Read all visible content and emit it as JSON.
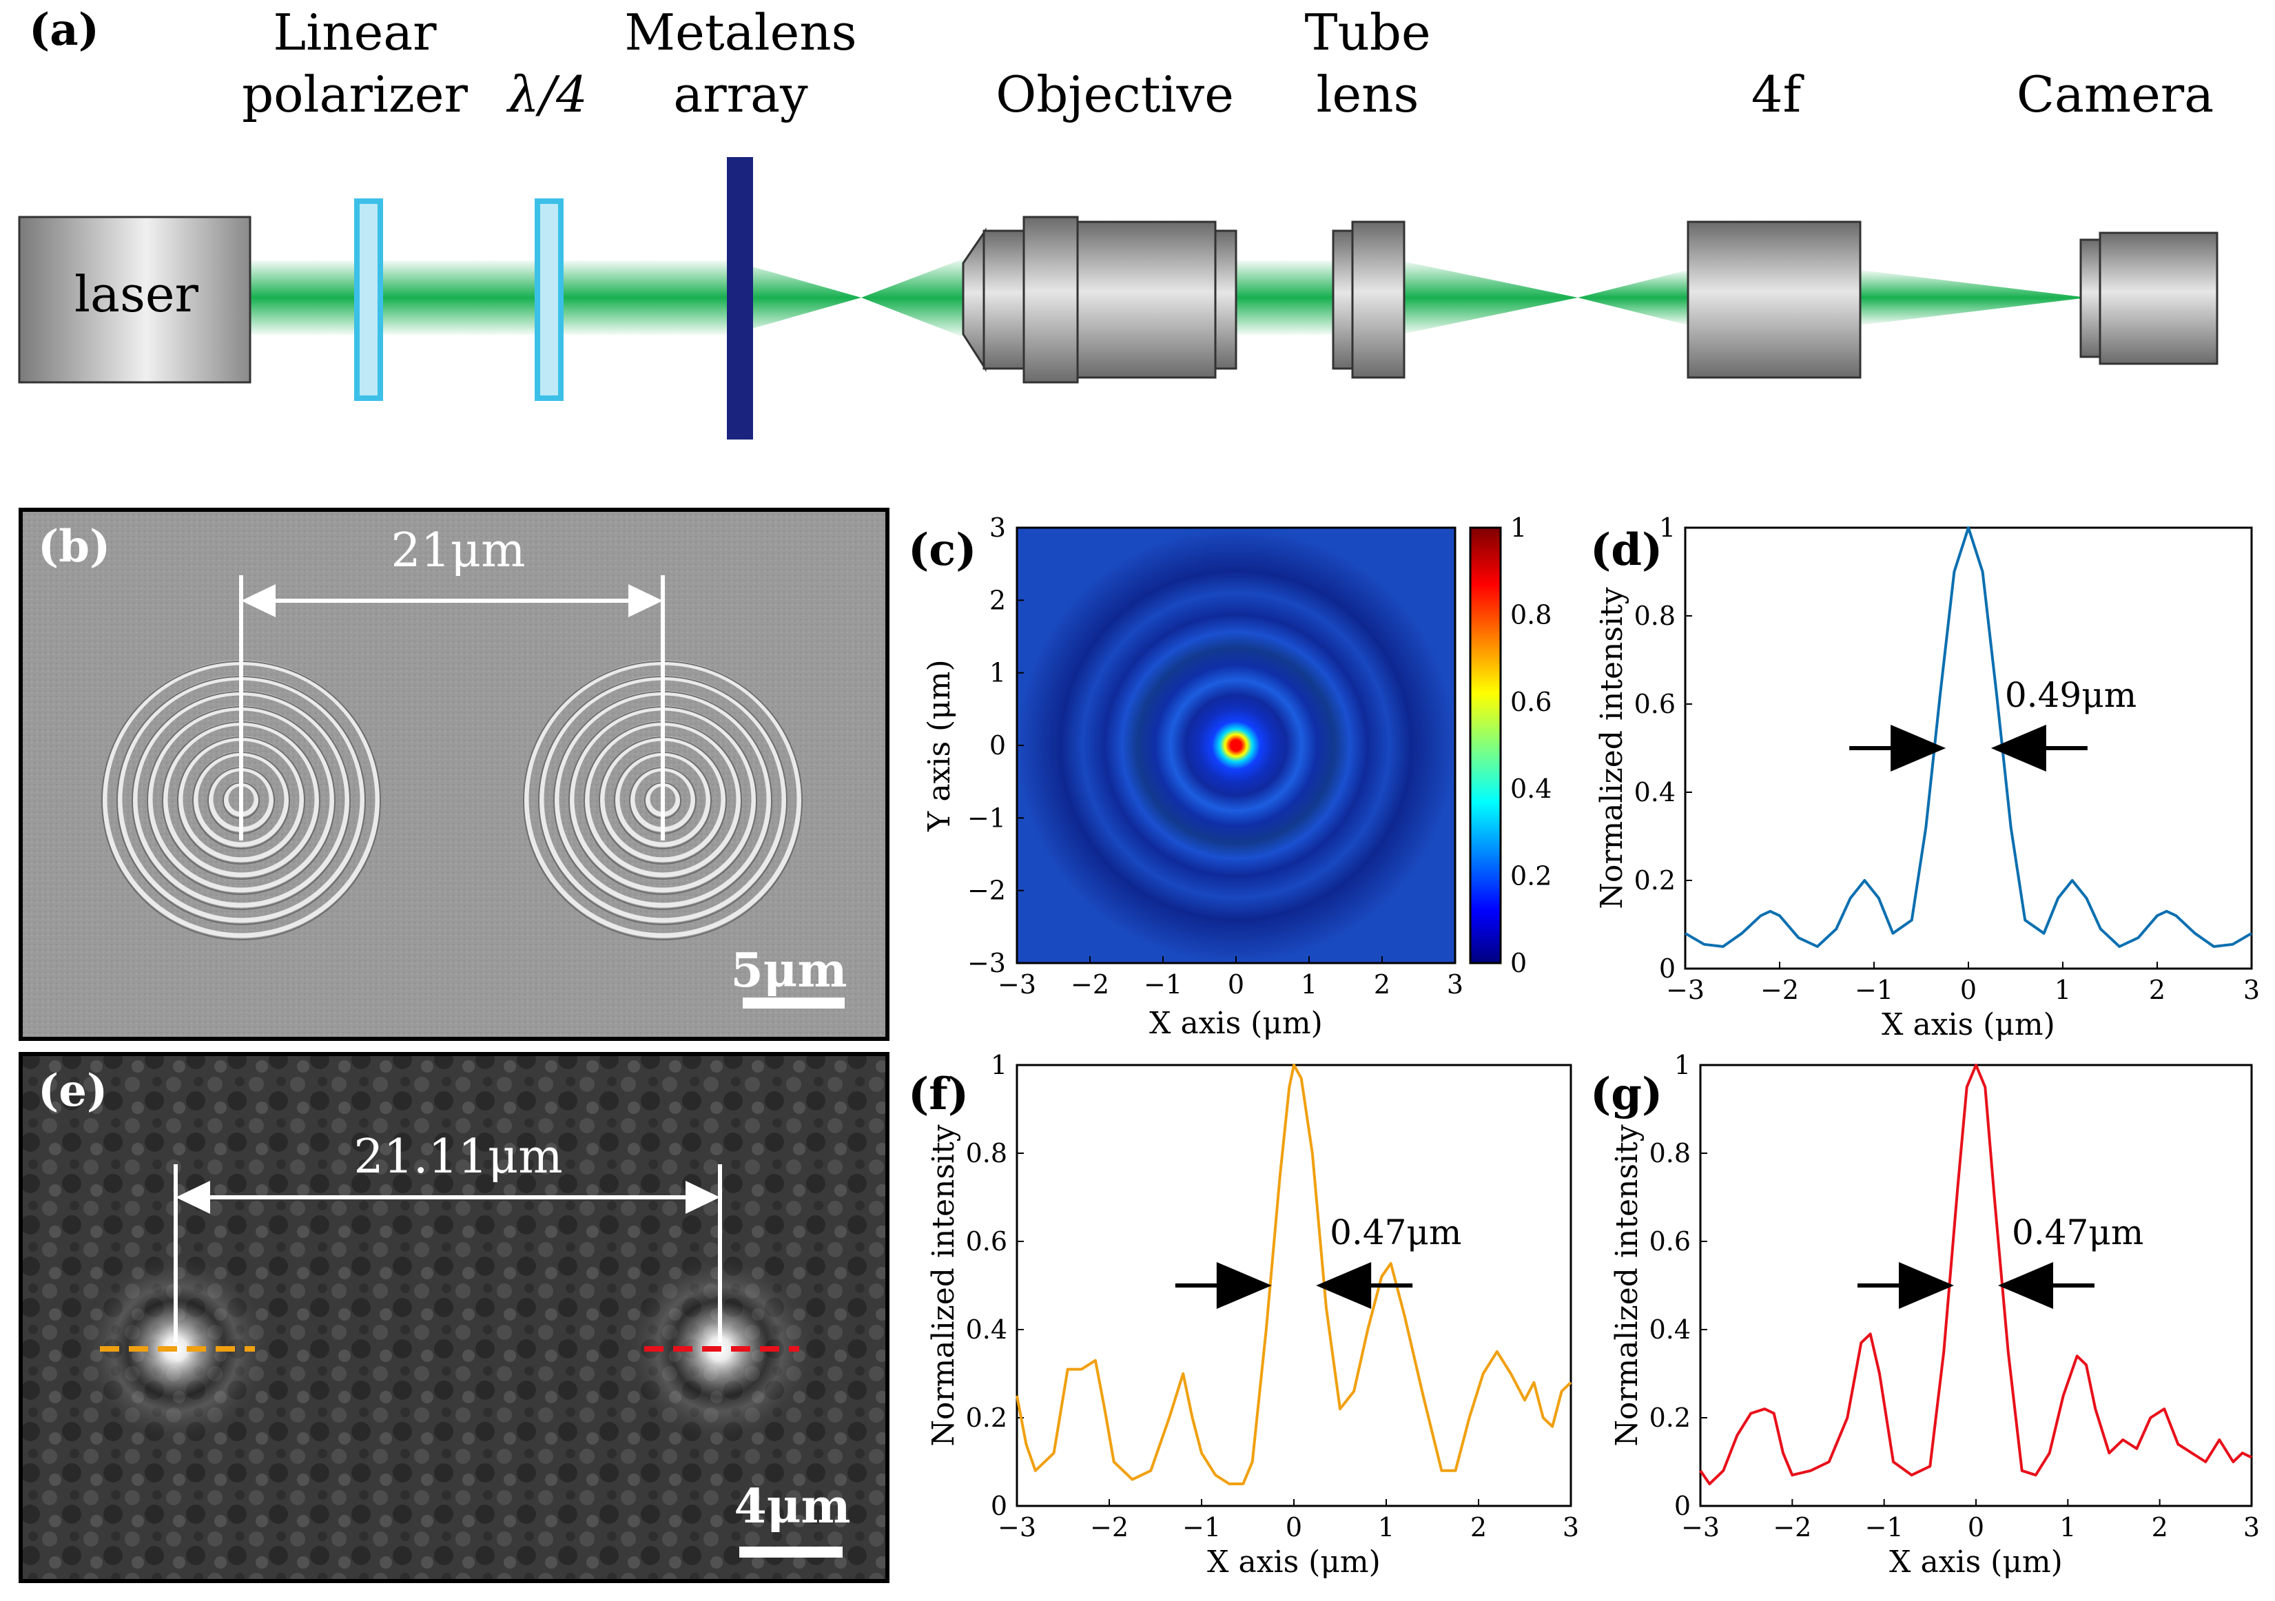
{
  "colors": {
    "beam": "#18b050",
    "polarizer": "#3cc0e8",
    "metalens": "#1a237e",
    "lens_dark": "#555555",
    "lens_light": "#e0e0e0",
    "blue_curve": "#0a6fb0",
    "orange_curve": "#f0a010",
    "red_curve": "#e8101a",
    "white": "#ffffff",
    "black": "#000000"
  },
  "panel_a": {
    "label": "(a)",
    "labels": {
      "linear_1": "Linear",
      "linear_2": "polarizer",
      "qwp": "λ/4",
      "metalens_1": "Metalens",
      "metalens_2": "array",
      "objective": "Objective",
      "tube_1": "Tube",
      "tube_2": "lens",
      "fourf": "4f",
      "camera": "Camera",
      "laser": "laser"
    }
  },
  "panel_b": {
    "label": "(b)",
    "distance": "21μm",
    "scale": "5μm"
  },
  "panel_e": {
    "label": "(e)",
    "distance": "21.11μm",
    "scale": "4μm"
  },
  "panel_c": {
    "label": "(c)",
    "xlabel": "X axis (μm)",
    "ylabel": "Y axis (μm)",
    "ticks": [
      "−3",
      "−2",
      "−1",
      "0",
      "1",
      "2",
      "3"
    ],
    "colorbar_ticks": [
      "0",
      "0.2",
      "0.4",
      "0.6",
      "0.8",
      "1"
    ]
  },
  "panel_d": {
    "label": "(d)",
    "fwhm": "0.49μm"
  },
  "panel_f": {
    "label": "(f)",
    "fwhm": "0.47μm"
  },
  "panel_g": {
    "label": "(g)",
    "fwhm": "0.47μm"
  },
  "profile_axes": {
    "xlabel": "X axis (μm)",
    "ylabel": "Normalized intensity",
    "xticks": [
      "−3",
      "−2",
      "−1",
      "0",
      "1",
      "2",
      "3"
    ],
    "yticks": [
      "0",
      "0.2",
      "0.4",
      "0.6",
      "0.8",
      "1"
    ]
  },
  "chart_data": [
    {
      "id": "c",
      "type": "heatmap",
      "title": "",
      "xlabel": "X axis (μm)",
      "ylabel": "Y axis (μm)",
      "xlim": [
        -3,
        3
      ],
      "ylim": [
        -3,
        3
      ],
      "colorbar": [
        0,
        1
      ],
      "description_values": {
        "peak_at": [
          0,
          0
        ],
        "peak": 1,
        "ring_radii_um": [
          1.05,
          2.1,
          3.0
        ]
      }
    },
    {
      "id": "d",
      "type": "line",
      "xlabel": "X axis (μm)",
      "ylabel": "Normalized intensity",
      "xlim": [
        -3,
        3
      ],
      "ylim": [
        0,
        1
      ],
      "annotation": "0.49μm",
      "x": [
        -3.0,
        -2.8,
        -2.6,
        -2.4,
        -2.2,
        -2.1,
        -2.0,
        -1.8,
        -1.6,
        -1.4,
        -1.25,
        -1.1,
        -0.95,
        -0.8,
        -0.6,
        -0.45,
        -0.3,
        -0.15,
        0.0,
        0.15,
        0.3,
        0.45,
        0.6,
        0.8,
        0.95,
        1.1,
        1.25,
        1.4,
        1.6,
        1.8,
        2.0,
        2.1,
        2.2,
        2.4,
        2.6,
        2.8,
        3.0
      ],
      "y": [
        0.08,
        0.055,
        0.05,
        0.08,
        0.12,
        0.13,
        0.12,
        0.07,
        0.05,
        0.09,
        0.16,
        0.2,
        0.16,
        0.08,
        0.11,
        0.32,
        0.62,
        0.9,
        1.0,
        0.9,
        0.62,
        0.32,
        0.11,
        0.08,
        0.16,
        0.2,
        0.16,
        0.09,
        0.05,
        0.07,
        0.12,
        0.13,
        0.12,
        0.08,
        0.05,
        0.055,
        0.08
      ]
    },
    {
      "id": "f",
      "type": "line",
      "xlabel": "X axis (μm)",
      "ylabel": "Normalized intensity",
      "xlim": [
        -3,
        3
      ],
      "ylim": [
        0,
        1
      ],
      "annotation": "0.47μm",
      "x": [
        -3.0,
        -2.9,
        -2.8,
        -2.6,
        -2.45,
        -2.3,
        -2.15,
        -2.05,
        -1.95,
        -1.75,
        -1.55,
        -1.35,
        -1.2,
        -1.1,
        -1.0,
        -0.85,
        -0.7,
        -0.55,
        -0.45,
        -0.3,
        -0.15,
        -0.05,
        0.0,
        0.08,
        0.2,
        0.35,
        0.5,
        0.65,
        0.8,
        0.95,
        1.05,
        1.2,
        1.4,
        1.6,
        1.75,
        1.9,
        2.05,
        2.2,
        2.35,
        2.5,
        2.6,
        2.7,
        2.8,
        2.9,
        3.0
      ],
      "y": [
        0.25,
        0.14,
        0.08,
        0.12,
        0.31,
        0.31,
        0.33,
        0.22,
        0.1,
        0.06,
        0.08,
        0.2,
        0.3,
        0.2,
        0.12,
        0.07,
        0.05,
        0.05,
        0.1,
        0.4,
        0.75,
        0.95,
        1.0,
        0.97,
        0.8,
        0.45,
        0.22,
        0.26,
        0.4,
        0.52,
        0.55,
        0.43,
        0.25,
        0.08,
        0.08,
        0.2,
        0.3,
        0.35,
        0.3,
        0.24,
        0.28,
        0.2,
        0.18,
        0.26,
        0.28
      ]
    },
    {
      "id": "g",
      "type": "line",
      "xlabel": "X axis (μm)",
      "ylabel": "Normalized intensity",
      "xlim": [
        -3,
        3
      ],
      "ylim": [
        0,
        1
      ],
      "annotation": "0.47μm",
      "x": [
        -3.0,
        -2.9,
        -2.75,
        -2.6,
        -2.45,
        -2.3,
        -2.2,
        -2.1,
        -2.0,
        -1.8,
        -1.6,
        -1.4,
        -1.25,
        -1.15,
        -1.05,
        -0.9,
        -0.7,
        -0.5,
        -0.35,
        -0.2,
        -0.1,
        0.0,
        0.1,
        0.2,
        0.35,
        0.5,
        0.65,
        0.8,
        0.95,
        1.1,
        1.2,
        1.3,
        1.45,
        1.6,
        1.75,
        1.9,
        2.05,
        2.2,
        2.35,
        2.5,
        2.65,
        2.8,
        2.9,
        3.0
      ],
      "y": [
        0.08,
        0.05,
        0.08,
        0.16,
        0.21,
        0.22,
        0.21,
        0.12,
        0.07,
        0.08,
        0.1,
        0.2,
        0.37,
        0.39,
        0.3,
        0.1,
        0.07,
        0.09,
        0.35,
        0.72,
        0.95,
        1.0,
        0.95,
        0.7,
        0.35,
        0.08,
        0.07,
        0.12,
        0.25,
        0.34,
        0.32,
        0.22,
        0.12,
        0.15,
        0.13,
        0.2,
        0.22,
        0.14,
        0.12,
        0.1,
        0.15,
        0.1,
        0.12,
        0.11
      ]
    }
  ]
}
